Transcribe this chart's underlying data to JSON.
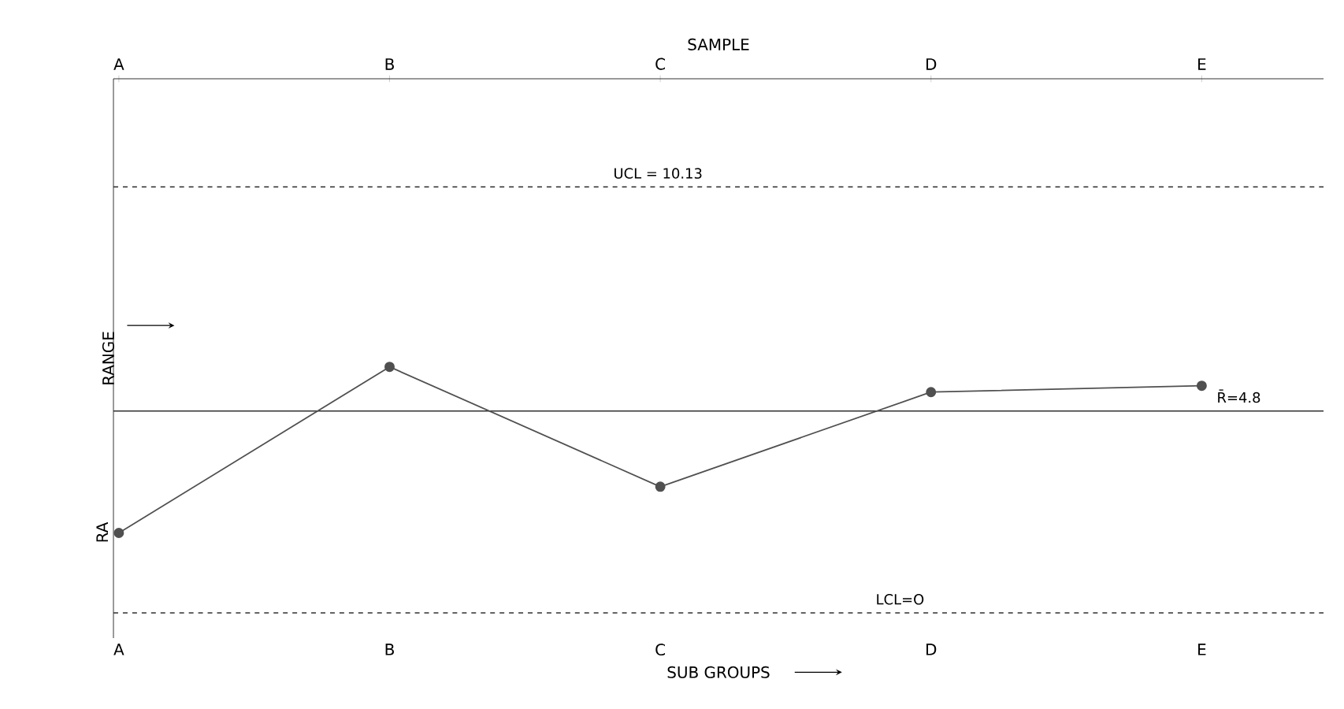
{
  "chart_data": {
    "type": "line",
    "xlabel": "SUB GROUPS",
    "ylabel": "RANGE",
    "x2label": "SAMPLE",
    "categories": [
      "A",
      "B",
      "C",
      "D",
      "E"
    ],
    "values": [
      1.9,
      5.85,
      3.0,
      5.25,
      5.4
    ],
    "color": "#505050",
    "marker": "circle",
    "line_style": "solid",
    "ylim": [
      -0.6,
      12.7
    ],
    "ref_lines": [
      {
        "axis": "y",
        "value": 10.13,
        "label": "UCL = 10.13",
        "line_style": "dashed",
        "color": "#303030"
      },
      {
        "axis": "y",
        "value": 4.8,
        "label": "R̄=4.8",
        "line_style": "solid",
        "color": "#303030"
      },
      {
        "axis": "y",
        "value": 0,
        "label": "LCL=O",
        "line_style": "dashed",
        "color": "#303030"
      }
    ],
    "annotations": [
      "RA"
    ]
  }
}
